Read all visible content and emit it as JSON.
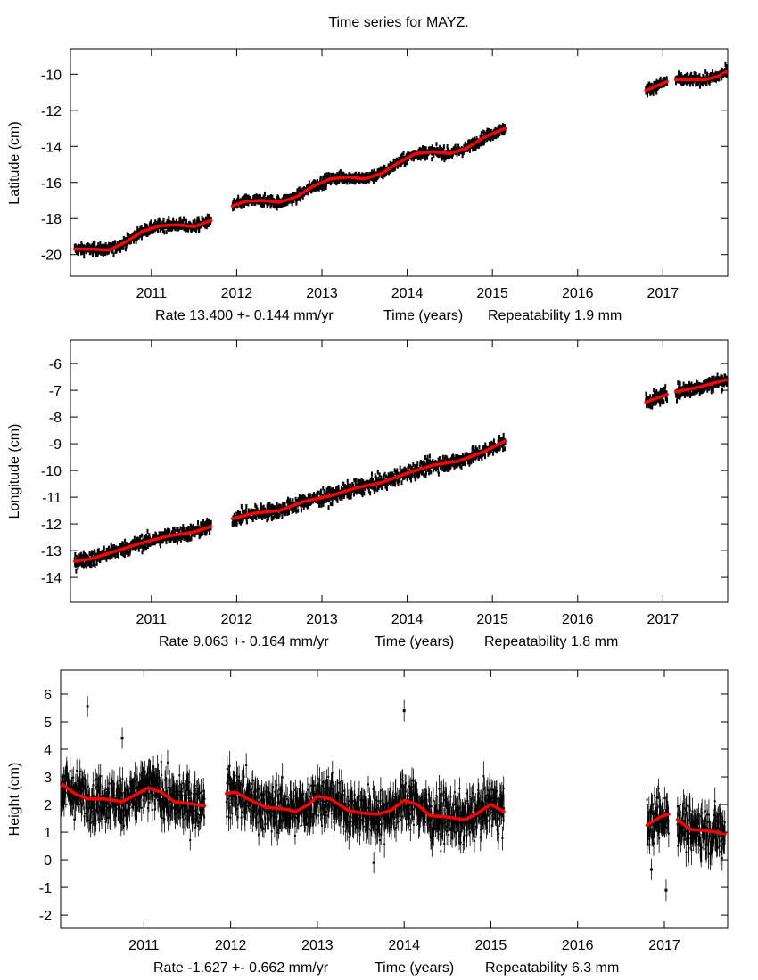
{
  "title": "Time series for MAYZ.",
  "colors": {
    "observations": "#000000",
    "fit": "#ff0000",
    "frame": "#000000"
  },
  "chart_data": [
    {
      "type": "scatter",
      "ylabel": "Latitude (cm)",
      "xlabel": {
        "rate": "Rate 13.400 +- 0.144 mm/yr",
        "time": "Time (years)",
        "repeatability": "Repeatability 1.9 mm"
      },
      "xlim": [
        2010.05,
        2017.76
      ],
      "ylim": [
        -21.2,
        -8.6
      ],
      "xticks": [
        "2011",
        "2012",
        "2013",
        "2014",
        "2015",
        "2016",
        "2017"
      ],
      "yticks": [
        "-20",
        "-18",
        "-16",
        "-14",
        "-12",
        "-10"
      ],
      "grid": false,
      "scatter_cm": 0.22,
      "error_bars": false,
      "fit_segments": [
        {
          "x": [
            2010.1,
            2010.3,
            2010.5,
            2010.7,
            2010.9,
            2011.1,
            2011.3,
            2011.5,
            2011.7
          ],
          "y": [
            -19.7,
            -19.7,
            -19.75,
            -19.3,
            -18.7,
            -18.4,
            -18.35,
            -18.45,
            -18.1
          ]
        },
        {
          "x": [
            2011.95,
            2012.1,
            2012.3,
            2012.5,
            2012.7,
            2012.9,
            2013.1,
            2013.3,
            2013.5,
            2013.7,
            2013.9,
            2014.1,
            2014.3,
            2014.5,
            2014.7,
            2014.9,
            2015.15
          ],
          "y": [
            -17.3,
            -17.05,
            -17.0,
            -17.1,
            -16.8,
            -16.2,
            -15.8,
            -15.7,
            -15.8,
            -15.5,
            -14.9,
            -14.4,
            -14.3,
            -14.4,
            -14.1,
            -13.5,
            -13.0
          ]
        },
        {
          "x": [
            2016.8,
            2016.95,
            2017.05
          ],
          "y": [
            -10.9,
            -10.6,
            -10.4
          ]
        },
        {
          "x": [
            2017.15,
            2017.3,
            2017.5,
            2017.65,
            2017.75
          ],
          "y": [
            -10.3,
            -10.3,
            -10.3,
            -10.1,
            -9.85
          ]
        }
      ],
      "outliers": []
    },
    {
      "type": "scatter",
      "ylabel": "Longitude (cm)",
      "xlabel": {
        "rate": "Rate 9.063 +- 0.164 mm/yr",
        "time": "Time (years)",
        "repeatability": "Repeatability 1.8 mm"
      },
      "xlim": [
        2010.05,
        2017.76
      ],
      "ylim": [
        -14.93,
        -5.13
      ],
      "xticks": [
        "2011",
        "2012",
        "2013",
        "2014",
        "2015",
        "2016",
        "2017"
      ],
      "yticks": [
        "-14",
        "-13",
        "-12",
        "-11",
        "-10",
        "-9",
        "-8",
        "-7",
        "-6"
      ],
      "grid": false,
      "scatter_cm": 0.2,
      "error_bars": false,
      "fit_segments": [
        {
          "x": [
            2010.1,
            2010.3,
            2010.6,
            2010.9,
            2011.2,
            2011.5,
            2011.7
          ],
          "y": [
            -13.4,
            -13.3,
            -13.0,
            -12.7,
            -12.45,
            -12.3,
            -12.1
          ]
        },
        {
          "x": [
            2011.95,
            2012.2,
            2012.5,
            2012.8,
            2013.1,
            2013.4,
            2013.7,
            2014.0,
            2014.3,
            2014.6,
            2014.9,
            2015.15
          ],
          "y": [
            -11.8,
            -11.6,
            -11.5,
            -11.15,
            -10.95,
            -10.65,
            -10.45,
            -10.1,
            -9.8,
            -9.65,
            -9.3,
            -8.9
          ]
        },
        {
          "x": [
            2016.8,
            2017.05
          ],
          "y": [
            -7.45,
            -7.15
          ]
        },
        {
          "x": [
            2017.15,
            2017.4,
            2017.75
          ],
          "y": [
            -7.05,
            -6.9,
            -6.6
          ]
        }
      ],
      "outliers": []
    },
    {
      "type": "scatter",
      "ylabel": "Height (cm)",
      "xlabel": {
        "rate": "Rate -1.627 +- 0.662 mm/yr",
        "time": "Time (years)",
        "repeatability": "Repeatability 6.3 mm"
      },
      "xlim": [
        2010.04,
        2017.73
      ],
      "ylim": [
        -2.48,
        6.87
      ],
      "xticks": [
        "2011",
        "2012",
        "2013",
        "2014",
        "2015",
        "2016",
        "2017"
      ],
      "yticks": [
        "-2",
        "-1",
        "0",
        "1",
        "2",
        "3",
        "4",
        "5",
        "6"
      ],
      "grid": false,
      "scatter_cm": 0.6,
      "error_bars": true,
      "fit_segments": [
        {
          "x": [
            2010.05,
            2010.2,
            2010.35,
            2010.55,
            2010.75,
            2010.9,
            2011.05,
            2011.2,
            2011.35,
            2011.5,
            2011.7
          ],
          "y": [
            2.75,
            2.4,
            2.2,
            2.2,
            2.1,
            2.35,
            2.6,
            2.45,
            2.1,
            2.05,
            1.95
          ]
        },
        {
          "x": [
            2011.95,
            2012.05,
            2012.2,
            2012.4,
            2012.6,
            2012.75,
            2012.9,
            2013.0,
            2013.15,
            2013.35,
            2013.5,
            2013.7,
            2013.85,
            2014.0,
            2014.15,
            2014.3,
            2014.5,
            2014.7,
            2014.85,
            2015.0,
            2015.15
          ],
          "y": [
            2.4,
            2.45,
            2.2,
            1.9,
            1.85,
            1.75,
            2.0,
            2.3,
            2.2,
            1.8,
            1.7,
            1.65,
            1.8,
            2.15,
            2.0,
            1.6,
            1.55,
            1.45,
            1.7,
            2.0,
            1.75
          ]
        },
        {
          "x": [
            2016.8,
            2016.95,
            2017.05
          ],
          "y": [
            1.25,
            1.55,
            1.65
          ]
        },
        {
          "x": [
            2017.15,
            2017.3,
            2017.5,
            2017.7
          ],
          "y": [
            1.45,
            1.1,
            1.05,
            0.95
          ]
        }
      ],
      "outliers": [
        {
          "x": 2010.35,
          "y": 5.55
        },
        {
          "x": 2010.75,
          "y": 4.4
        },
        {
          "x": 2014.0,
          "y": 5.4
        },
        {
          "x": 2017.02,
          "y": -1.1
        },
        {
          "x": 2016.85,
          "y": -0.35
        },
        {
          "x": 2013.65,
          "y": -0.1
        }
      ]
    }
  ]
}
